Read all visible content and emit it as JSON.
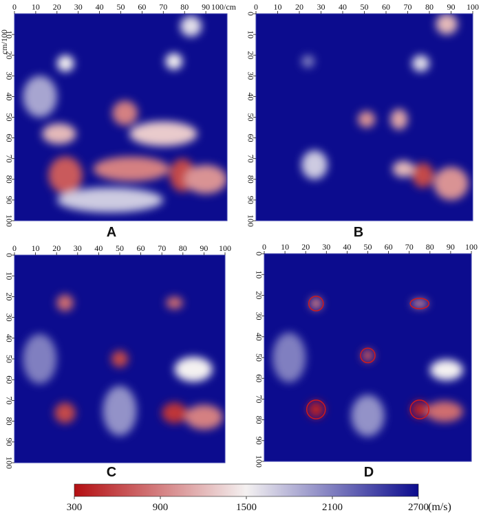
{
  "chart_data": [
    {
      "type": "heatmap",
      "panel": "A",
      "xlabel": "cm",
      "ylabel": "cm",
      "xlim": [
        0,
        100
      ],
      "ylim": [
        0,
        100
      ],
      "x_ticks": [
        "0",
        "10",
        "20",
        "30",
        "40",
        "50",
        "60",
        "70",
        "80",
        "90",
        "100"
      ],
      "y_ticks": [
        "0",
        "10",
        "20",
        "30",
        "40",
        "50",
        "60",
        "70",
        "80",
        "90",
        "100"
      ],
      "background_velocity": 2700,
      "anomalies": [
        {
          "x": 24,
          "y": 24,
          "rx": 4,
          "ry": 4,
          "velocity": 1500
        },
        {
          "x": 75,
          "y": 23,
          "rx": 4,
          "ry": 4,
          "velocity": 1500
        },
        {
          "x": 52,
          "y": 48,
          "rx": 6,
          "ry": 6,
          "velocity": 900
        },
        {
          "x": 21,
          "y": 58,
          "rx": 8,
          "ry": 5,
          "velocity": 1200
        },
        {
          "x": 70,
          "y": 58,
          "rx": 16,
          "ry": 6,
          "velocity": 1300
        },
        {
          "x": 24,
          "y": 78,
          "rx": 8,
          "ry": 9,
          "velocity": 700
        },
        {
          "x": 55,
          "y": 75,
          "rx": 18,
          "ry": 6,
          "velocity": 900
        },
        {
          "x": 79,
          "y": 78,
          "rx": 6,
          "ry": 8,
          "velocity": 600
        },
        {
          "x": 90,
          "y": 80,
          "rx": 10,
          "ry": 7,
          "velocity": 1000
        },
        {
          "x": 45,
          "y": 90,
          "rx": 25,
          "ry": 6,
          "velocity": 1700
        },
        {
          "x": 83,
          "y": 6,
          "rx": 5,
          "ry": 5,
          "velocity": 1600
        },
        {
          "x": 12,
          "y": 40,
          "rx": 8,
          "ry": 10,
          "velocity": 1900
        }
      ]
    },
    {
      "type": "heatmap",
      "panel": "B",
      "xlim": [
        0,
        100
      ],
      "ylim": [
        0,
        100
      ],
      "x_ticks": [
        "0",
        "10",
        "20",
        "30",
        "40",
        "50",
        "60",
        "70",
        "80",
        "90",
        "100"
      ],
      "y_ticks": [
        "0",
        "10",
        "20",
        "30",
        "40",
        "50",
        "60",
        "70",
        "80",
        "90",
        "100"
      ],
      "background_velocity": 2700,
      "anomalies": [
        {
          "x": 24,
          "y": 23,
          "rx": 3,
          "ry": 3,
          "velocity": 2100
        },
        {
          "x": 76,
          "y": 24,
          "rx": 4,
          "ry": 4,
          "velocity": 1600
        },
        {
          "x": 51,
          "y": 51,
          "rx": 4,
          "ry": 4,
          "velocity": 1000
        },
        {
          "x": 66,
          "y": 51,
          "rx": 4,
          "ry": 5,
          "velocity": 1100
        },
        {
          "x": 27,
          "y": 73,
          "rx": 6,
          "ry": 7,
          "velocity": 1700
        },
        {
          "x": 77,
          "y": 78,
          "rx": 5,
          "ry": 6,
          "velocity": 600
        },
        {
          "x": 90,
          "y": 82,
          "rx": 8,
          "ry": 8,
          "velocity": 1000
        },
        {
          "x": 68,
          "y": 75,
          "rx": 5,
          "ry": 4,
          "velocity": 1200
        },
        {
          "x": 88,
          "y": 5,
          "rx": 5,
          "ry": 5,
          "velocity": 1200
        }
      ]
    },
    {
      "type": "heatmap",
      "panel": "C",
      "xlim": [
        0,
        100
      ],
      "ylim": [
        0,
        100
      ],
      "x_ticks": [
        "0",
        "10",
        "20",
        "30",
        "40",
        "50",
        "60",
        "70",
        "80",
        "90",
        "100"
      ],
      "y_ticks": [
        "0",
        "10",
        "20",
        "30",
        "40",
        "50",
        "60",
        "70",
        "80",
        "90",
        "100"
      ],
      "background_velocity": 2700,
      "anomalies": [
        {
          "x": 24,
          "y": 23,
          "rx": 4,
          "ry": 4,
          "velocity": 800
        },
        {
          "x": 76,
          "y": 23,
          "rx": 4,
          "ry": 3,
          "velocity": 800
        },
        {
          "x": 50,
          "y": 50,
          "rx": 4,
          "ry": 4,
          "velocity": 600
        },
        {
          "x": 24,
          "y": 76,
          "rx": 5,
          "ry": 5,
          "velocity": 600
        },
        {
          "x": 76,
          "y": 76,
          "rx": 6,
          "ry": 5,
          "velocity": 500
        },
        {
          "x": 90,
          "y": 78,
          "rx": 9,
          "ry": 6,
          "velocity": 900
        },
        {
          "x": 85,
          "y": 55,
          "rx": 9,
          "ry": 6,
          "velocity": 1500
        },
        {
          "x": 12,
          "y": 50,
          "rx": 8,
          "ry": 12,
          "velocity": 2100
        },
        {
          "x": 50,
          "y": 75,
          "rx": 8,
          "ry": 12,
          "velocity": 2000
        }
      ]
    },
    {
      "type": "heatmap",
      "panel": "D",
      "xlim": [
        0,
        100
      ],
      "ylim": [
        0,
        100
      ],
      "x_ticks": [
        "0",
        "10",
        "20",
        "30",
        "40",
        "50",
        "60",
        "70",
        "80",
        "90",
        "100"
      ],
      "y_ticks": [
        "0",
        "10",
        "20",
        "30",
        "40",
        "50",
        "60",
        "70",
        "80",
        "90",
        "100"
      ],
      "background_velocity": 2700,
      "anomalies": [
        {
          "x": 25,
          "y": 24,
          "rx": 3,
          "ry": 3,
          "velocity": 900
        },
        {
          "x": 75,
          "y": 24,
          "rx": 4,
          "ry": 2,
          "velocity": 1000
        },
        {
          "x": 50,
          "y": 49,
          "rx": 3,
          "ry": 3,
          "velocity": 700
        },
        {
          "x": 25,
          "y": 75,
          "rx": 4,
          "ry": 4,
          "velocity": 400
        },
        {
          "x": 75,
          "y": 75,
          "rx": 4,
          "ry": 4,
          "velocity": 400
        },
        {
          "x": 87,
          "y": 76,
          "rx": 9,
          "ry": 5,
          "velocity": 800
        },
        {
          "x": 88,
          "y": 56,
          "rx": 8,
          "ry": 5,
          "velocity": 1500
        },
        {
          "x": 12,
          "y": 50,
          "rx": 8,
          "ry": 12,
          "velocity": 2100
        },
        {
          "x": 50,
          "y": 78,
          "rx": 8,
          "ry": 10,
          "velocity": 2000
        }
      ],
      "highlights": [
        {
          "x": 25,
          "y": 24,
          "rx": 3.5,
          "ry": 3.5
        },
        {
          "x": 75,
          "y": 24,
          "rx": 4.5,
          "ry": 2.5
        },
        {
          "x": 50,
          "y": 49,
          "rx": 3.5,
          "ry": 3.5
        },
        {
          "x": 25,
          "y": 75,
          "rx": 4.5,
          "ry": 4.5
        },
        {
          "x": 75,
          "y": 75,
          "rx": 4.5,
          "ry": 4.5
        }
      ]
    }
  ],
  "axis": {
    "x_unit_label": "100/cm",
    "y_unit_label": "cm/100"
  },
  "panel_labels": [
    "A",
    "B",
    "C",
    "D"
  ],
  "colorbar": {
    "min": 300,
    "max": 2700,
    "ticks": [
      "300",
      "900",
      "1500",
      "2100",
      "2700"
    ],
    "unit": "(m/s)",
    "colors": [
      "#b40f12",
      "#f4f1f1",
      "#0c0c8e"
    ]
  }
}
